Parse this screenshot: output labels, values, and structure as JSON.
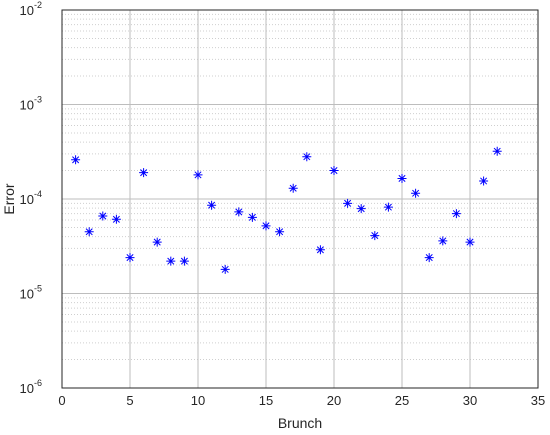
{
  "chart_data": {
    "type": "scatter",
    "xlabel": "Brunch",
    "ylabel": "Error",
    "xlim": [
      0,
      35
    ],
    "ylim": [
      1e-06,
      0.01
    ],
    "yscale": "log",
    "grid": true,
    "x_ticks": [
      "0",
      "5",
      "10",
      "15",
      "20",
      "25",
      "30",
      "35"
    ],
    "y_ticks": [
      {
        "base": "10",
        "exp": "-6"
      },
      {
        "base": "10",
        "exp": "-5"
      },
      {
        "base": "10",
        "exp": "-4"
      },
      {
        "base": "10",
        "exp": "-3"
      },
      {
        "base": "10",
        "exp": "-2"
      }
    ],
    "marker": "asterisk",
    "color": "#0000ff",
    "x": [
      1,
      2,
      3,
      4,
      5,
      6,
      7,
      8,
      9,
      10,
      11,
      12,
      13,
      14,
      15,
      16,
      17,
      18,
      19,
      20,
      21,
      22,
      23,
      24,
      25,
      26,
      27,
      28,
      29,
      30,
      31,
      32
    ],
    "y": [
      0.00026,
      4.5e-05,
      6.6e-05,
      6.1e-05,
      2.4e-05,
      0.00019,
      3.5e-05,
      2.2e-05,
      2.2e-05,
      0.00018,
      8.6e-05,
      1.8e-05,
      7.3e-05,
      6.4e-05,
      5.2e-05,
      4.5e-05,
      0.00013,
      0.00028,
      2.9e-05,
      0.0002,
      9e-05,
      7.9e-05,
      4.1e-05,
      8.2e-05,
      0.000165,
      0.000115,
      2.4e-05,
      3.6e-05,
      7e-05,
      3.5e-05,
      0.000155,
      0.00032
    ]
  }
}
